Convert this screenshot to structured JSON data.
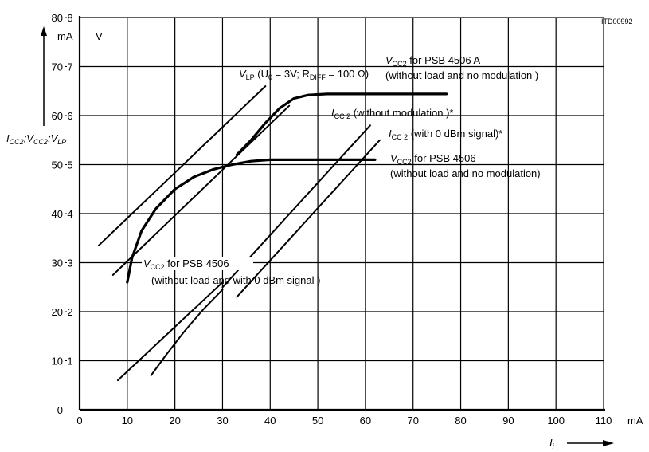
{
  "chart_data": {
    "type": "line",
    "figure_id": "ITD00992",
    "x_axis": {
      "unit": "mA",
      "label_main": "I",
      "label_sub": "i",
      "range": [
        0,
        110
      ],
      "ticks": [
        0,
        10,
        20,
        30,
        40,
        50,
        60,
        70,
        80,
        90,
        100,
        110
      ]
    },
    "y_axis_current": {
      "unit": "mA",
      "range": [
        0,
        80
      ],
      "ticks": [
        0,
        10,
        20,
        30,
        40,
        50,
        60,
        70,
        80
      ]
    },
    "y_axis_voltage": {
      "unit": "V",
      "range": [
        0,
        8
      ],
      "ticks": [
        1,
        2,
        3,
        4,
        5,
        6,
        7,
        8
      ]
    },
    "y_label_parts": [
      {
        "t": "I",
        "s": "CC2"
      },
      {
        "t": ";V",
        "s": "CC2"
      },
      {
        "t": ";V",
        "s": "LP"
      }
    ],
    "grid": true,
    "series": [
      {
        "name": "VLP (U0 = 3V; RDIFF = 100 Ω)",
        "points": [
          [
            4,
            33.5
          ],
          [
            39,
            66
          ]
        ]
      },
      {
        "name": "VCC2 for PSB 4506 A (without load and no modulation)",
        "points": [
          [
            33,
            52
          ],
          [
            36,
            55
          ],
          [
            39,
            58.5
          ],
          [
            42,
            61.5
          ],
          [
            45,
            63.5
          ],
          [
            48,
            64.2
          ],
          [
            52,
            64.4
          ],
          [
            60,
            64.4
          ],
          [
            70,
            64.4
          ],
          [
            77,
            64.4
          ]
        ]
      },
      {
        "name": "VCC2 for PSB 4506 (without load and no modulation)",
        "points": [
          [
            10,
            26
          ],
          [
            11,
            31
          ],
          [
            13,
            36.5
          ],
          [
            16,
            41
          ],
          [
            20,
            45
          ],
          [
            24,
            47.5
          ],
          [
            28,
            49
          ],
          [
            32,
            50
          ],
          [
            36,
            50.7
          ],
          [
            40,
            51
          ],
          [
            50,
            51
          ],
          [
            60,
            51
          ],
          [
            62,
            51
          ]
        ]
      },
      {
        "name": "VCC2 for PSB 4506 (without load and with 0 dBm signal)",
        "points": [
          [
            7,
            27.5
          ],
          [
            44,
            62
          ]
        ]
      },
      {
        "name": "ICC2 (without modulation)*",
        "points": [
          [
            30,
            25
          ],
          [
            61,
            58
          ]
        ]
      },
      {
        "name": "ICC2 (with 0 dBm signal)*",
        "points": [
          [
            33,
            23
          ],
          [
            63,
            55
          ]
        ]
      },
      {
        "name": "ICC2 lower (with 0 dBm signal)",
        "points": [
          [
            15,
            7
          ],
          [
            18,
            11
          ],
          [
            22,
            16
          ],
          [
            26,
            20.5
          ],
          [
            30,
            24.5
          ]
        ]
      },
      {
        "name": "ICC2 lower (without modulation)",
        "points": [
          [
            8,
            6
          ],
          [
            30,
            26
          ]
        ]
      }
    ],
    "annotations": {
      "vlp": {
        "t1": "V",
        "s1": "LP",
        "t2": " (U",
        "s2": "0",
        "t3": " = 3V; R",
        "s3": "DIFF",
        "t4": " = 100 Ω)"
      },
      "psb_a_l1": {
        "t1": "V",
        "s1": "CC2",
        "t2": " for PSB 4506 A"
      },
      "psb_a_l2": "(without load and no modulation )",
      "icc_nomod": {
        "t1": "I",
        "s1": "CC 2",
        "t2": " (without modulation )*"
      },
      "icc_0dbm": {
        "t1": "I",
        "s1": "CC 2",
        "t2": " (with 0 dBm signal)*"
      },
      "psb_l1": {
        "t1": "V",
        "s1": "CC2",
        "t2": " for PSB 4506"
      },
      "psb_l2": "(without load and no modulation)",
      "psb_sig_l1": {
        "t1": "V",
        "s1": "CC2",
        "t2": " for PSB 4506"
      },
      "psb_sig_l2": "(without load and with 0 dBm signal )"
    }
  }
}
